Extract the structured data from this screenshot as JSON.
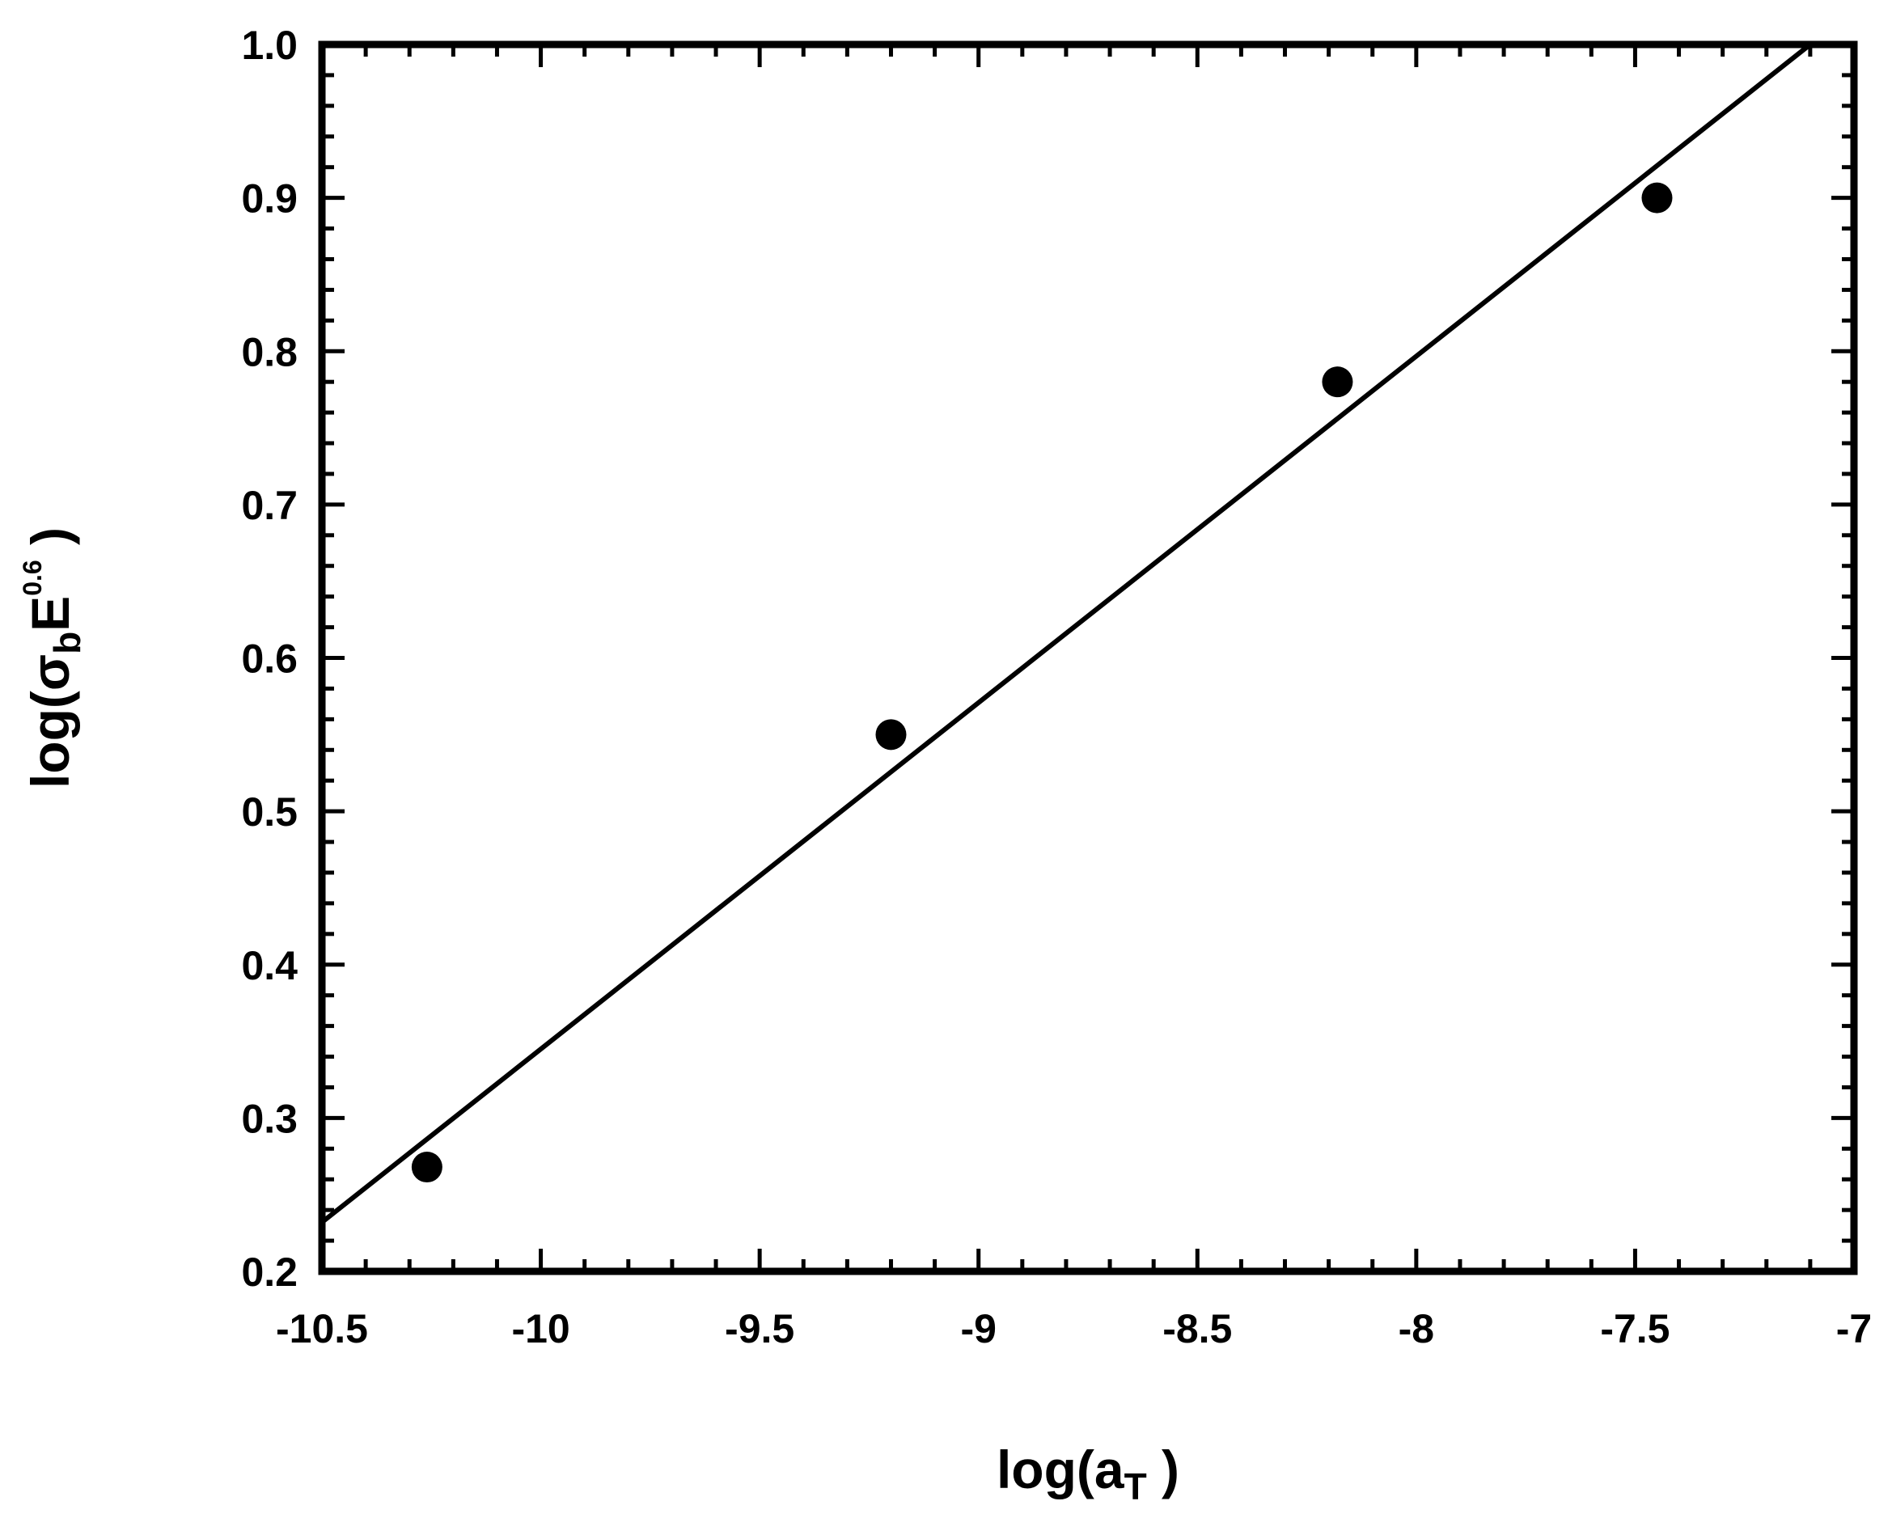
{
  "chart_data": {
    "type": "scatter",
    "xlabel": {
      "prefix": "log(a",
      "subscript": "T",
      "suffix": " )"
    },
    "ylabel": {
      "prefix": "log(σ",
      "subscript": "b",
      "middle": "E",
      "superscript": "0.6",
      "suffix": " )"
    },
    "xlim": [
      -10.5,
      -7
    ],
    "ylim": [
      0.2,
      1.0
    ],
    "xticks": [
      -10.5,
      -10,
      -9.5,
      -9,
      -8.5,
      -8,
      -7.5,
      -7
    ],
    "xtick_labels": [
      "-10.5",
      "-10",
      "-9.5",
      "-9",
      "-8.5",
      "-8",
      "-7.5",
      "-7"
    ],
    "yticks": [
      0.2,
      0.3,
      0.4,
      0.5,
      0.6,
      0.7,
      0.8,
      0.9,
      1.0
    ],
    "ytick_labels": [
      "0.2",
      "0.3",
      "0.4",
      "0.5",
      "0.6",
      "0.7",
      "0.8",
      "0.9",
      "1.0"
    ],
    "x_minor_step": 0.1,
    "y_minor_step": 0.02,
    "grid": false,
    "legend": "none",
    "series": [
      {
        "kind": "points",
        "marker": "filled-circle",
        "color": "#000000",
        "points": [
          {
            "x": -10.26,
            "y": 0.268
          },
          {
            "x": -9.2,
            "y": 0.55
          },
          {
            "x": -8.18,
            "y": 0.78
          },
          {
            "x": -7.45,
            "y": 0.9
          }
        ]
      },
      {
        "kind": "fit-line",
        "color": "#000000",
        "points": [
          {
            "x": -10.5,
            "y": 0.232
          },
          {
            "x": -7.1,
            "y": 1.0
          }
        ]
      }
    ]
  }
}
